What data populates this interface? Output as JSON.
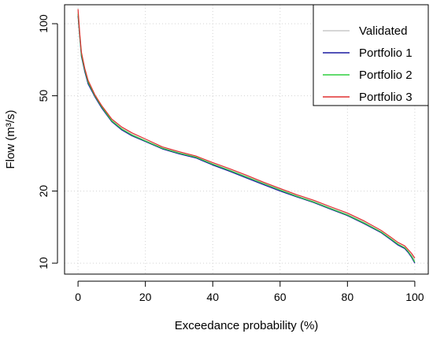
{
  "chart_data": {
    "type": "line",
    "title": "",
    "xlabel": "Exceedance probability (%)",
    "ylabel": "Flow (m³/s)",
    "x_scale": "linear",
    "y_scale": "log",
    "xlim": [
      0,
      100
    ],
    "ylim": [
      9,
      120
    ],
    "x_ticks": [
      0,
      20,
      40,
      60,
      80,
      100
    ],
    "y_ticks": [
      10,
      20,
      50,
      100
    ],
    "grid": true,
    "legend_position": "top-right",
    "series": [
      {
        "name": "Validated",
        "color": "#c8c8c8",
        "x": [
          0,
          0.5,
          1,
          2,
          3,
          5,
          7,
          10,
          13,
          16,
          20,
          25,
          30,
          35,
          40,
          45,
          50,
          55,
          60,
          65,
          70,
          75,
          80,
          85,
          90,
          93,
          95,
          97,
          98,
          99,
          100
        ],
        "y": [
          112,
          90,
          75,
          64,
          57,
          50,
          45,
          39.5,
          36.5,
          34.5,
          32.5,
          30.3,
          29,
          27.8,
          26,
          24.5,
          23,
          21.6,
          20.3,
          19.1,
          18.1,
          17.0,
          16.0,
          14.8,
          13.5,
          12.6,
          12.0,
          11.6,
          11.2,
          10.8,
          10.3
        ]
      },
      {
        "name": "Portfolio 1",
        "color": "#1a1aa0",
        "x": [
          0,
          0.5,
          1,
          2,
          3,
          5,
          7,
          10,
          13,
          16,
          20,
          25,
          30,
          35,
          40,
          45,
          50,
          55,
          60,
          65,
          70,
          75,
          80,
          85,
          90,
          93,
          95,
          97,
          98,
          99,
          100
        ],
        "y": [
          108,
          88,
          73,
          63,
          56,
          49.5,
          44.5,
          39,
          36,
          34,
          32.2,
          30,
          28.6,
          27.5,
          25.7,
          24.2,
          22.7,
          21.3,
          20.0,
          18.9,
          17.9,
          16.8,
          15.8,
          14.6,
          13.4,
          12.5,
          11.9,
          11.5,
          11.1,
          10.6,
          10.0
        ]
      },
      {
        "name": "Portfolio 2",
        "color": "#2fcf3f",
        "x": [
          0,
          0.5,
          1,
          2,
          3,
          5,
          7,
          10,
          13,
          16,
          20,
          25,
          30,
          35,
          40,
          45,
          50,
          55,
          60,
          65,
          70,
          75,
          80,
          85,
          90,
          93,
          95,
          97,
          98,
          99,
          100
        ],
        "y": [
          110,
          89,
          74,
          64,
          57,
          50,
          45,
          39.3,
          36.3,
          34.3,
          32.4,
          30.2,
          28.8,
          27.7,
          25.9,
          24.4,
          22.9,
          21.5,
          20.2,
          19.0,
          18.0,
          16.9,
          15.9,
          14.7,
          13.5,
          12.6,
          12.0,
          11.6,
          11.2,
          10.7,
          10.1
        ]
      },
      {
        "name": "Portfolio 3",
        "color": "#e03030",
        "x": [
          0,
          0.5,
          1,
          2,
          3,
          5,
          7,
          10,
          13,
          16,
          20,
          25,
          30,
          35,
          40,
          45,
          50,
          55,
          60,
          65,
          70,
          75,
          80,
          85,
          90,
          93,
          95,
          97,
          98,
          99,
          100
        ],
        "y": [
          115,
          91,
          76,
          65,
          58,
          50.5,
          45.5,
          40,
          37,
          35,
          33,
          30.6,
          29.2,
          28.0,
          26.3,
          24.8,
          23.3,
          21.8,
          20.5,
          19.3,
          18.3,
          17.2,
          16.2,
          15.0,
          13.7,
          12.8,
          12.2,
          11.8,
          11.4,
          11.0,
          10.5
        ]
      }
    ]
  }
}
